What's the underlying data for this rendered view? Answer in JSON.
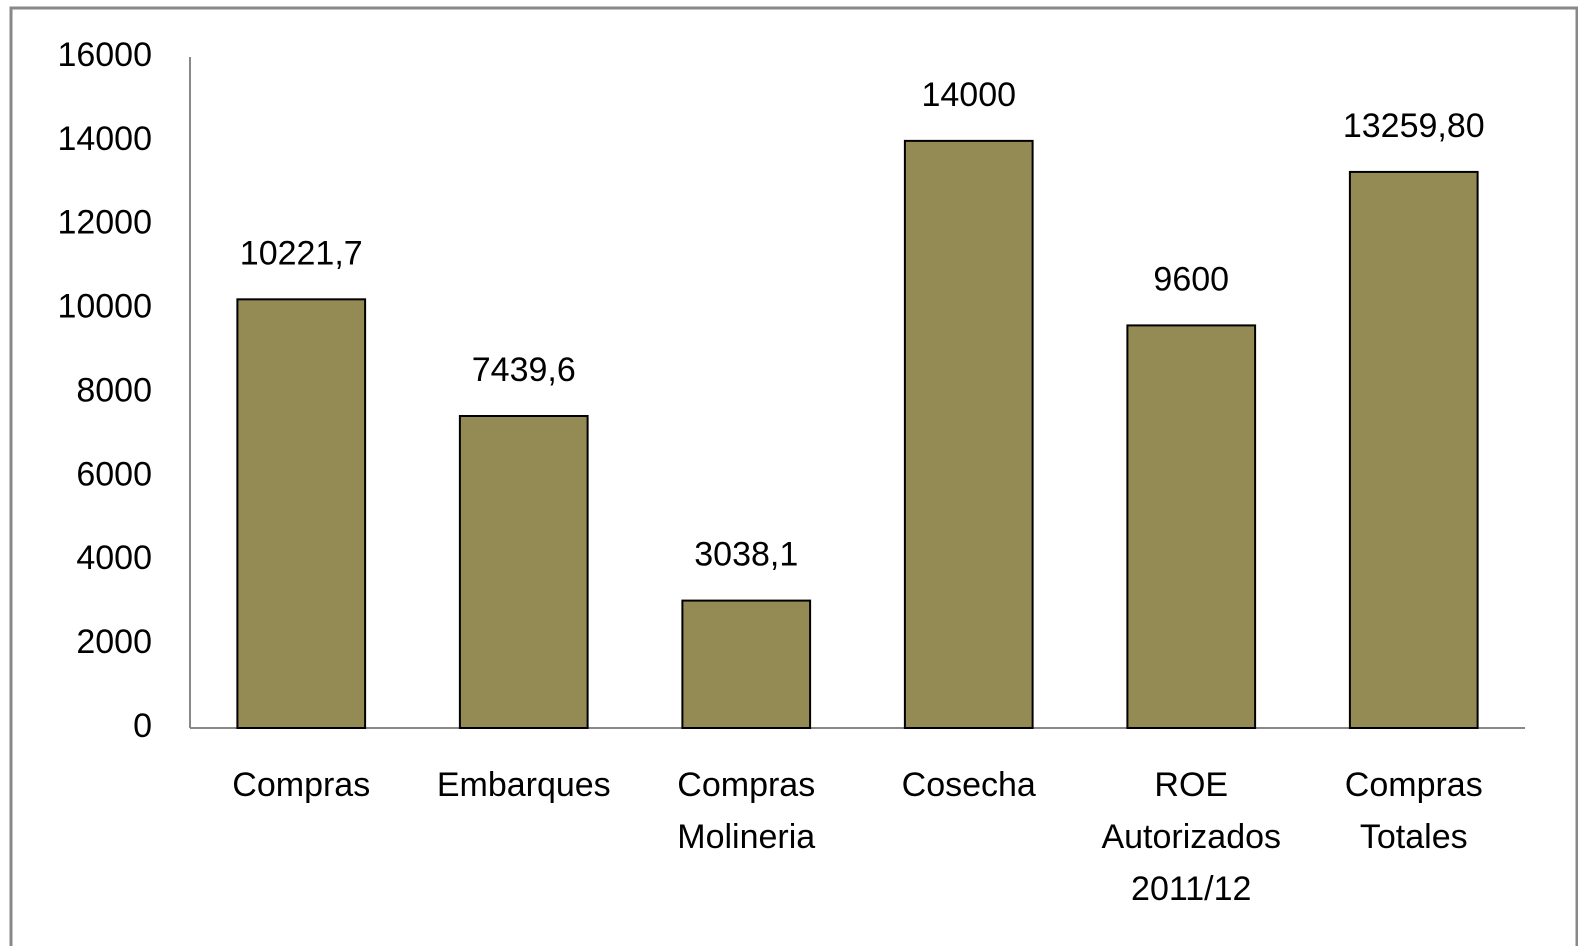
{
  "chart_data": {
    "type": "bar",
    "categories": [
      "Compras",
      "Embarques",
      "Compras Molineria",
      "Cosecha",
      "ROE Autorizados 2011/12",
      "Compras Totales"
    ],
    "values": [
      10221.7,
      7439.6,
      3038.1,
      14000,
      9600,
      13259.8
    ],
    "value_labels": [
      "10221,7",
      "7439,6",
      "3038,1",
      "14000",
      "9600",
      "13259,80"
    ],
    "color": "#948a54",
    "ylim": [
      0,
      16000
    ],
    "yticks": [
      0,
      2000,
      4000,
      6000,
      8000,
      10000,
      12000,
      14000,
      16000
    ],
    "grid": false
  }
}
